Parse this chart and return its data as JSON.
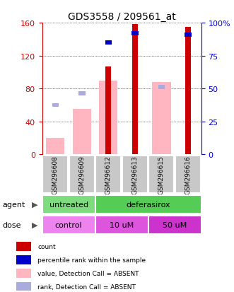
{
  "title": "GDS3558 / 209561_at",
  "samples": [
    "GSM296608",
    "GSM296609",
    "GSM296612",
    "GSM296613",
    "GSM296615",
    "GSM296616"
  ],
  "count_values": [
    0,
    0,
    107,
    158,
    0,
    155
  ],
  "absent_value_bars": [
    20,
    55,
    90,
    0,
    88,
    0
  ],
  "absent_rank_bars": [
    60,
    74,
    0,
    0,
    82,
    0
  ],
  "percentile_rank": [
    0,
    0,
    85,
    92,
    0,
    91
  ],
  "ylim_left": [
    0,
    160
  ],
  "ylim_right": [
    0,
    100
  ],
  "yticks_left": [
    0,
    40,
    80,
    120,
    160
  ],
  "yticks_right": [
    0,
    25,
    50,
    75,
    100
  ],
  "yticklabels_right": [
    "0",
    "25",
    "50",
    "75",
    "100%"
  ],
  "agent_groups": [
    {
      "label": "untreated",
      "span": [
        0,
        2
      ],
      "color": "#7EDB7E"
    },
    {
      "label": "deferasirox",
      "span": [
        2,
        6
      ],
      "color": "#55CC55"
    }
  ],
  "dose_groups": [
    {
      "label": "control",
      "span": [
        0,
        2
      ],
      "color": "#EE82EE"
    },
    {
      "label": "10 uM",
      "span": [
        2,
        4
      ],
      "color": "#DD55DD"
    },
    {
      "label": "50 uM",
      "span": [
        4,
        6
      ],
      "color": "#CC33CC"
    }
  ],
  "bar_width": 0.35,
  "color_count": "#CC0000",
  "color_rank": "#0000CC",
  "color_absent_value": "#FFB6C1",
  "color_absent_rank": "#AAAADD",
  "grid_color": "#000000",
  "bg_color": "#FFFFFF",
  "label_color_left": "#CC0000",
  "label_color_right": "#0000CC",
  "tick_label_color_left": "#CC0000",
  "tick_label_color_right": "#0000CC"
}
